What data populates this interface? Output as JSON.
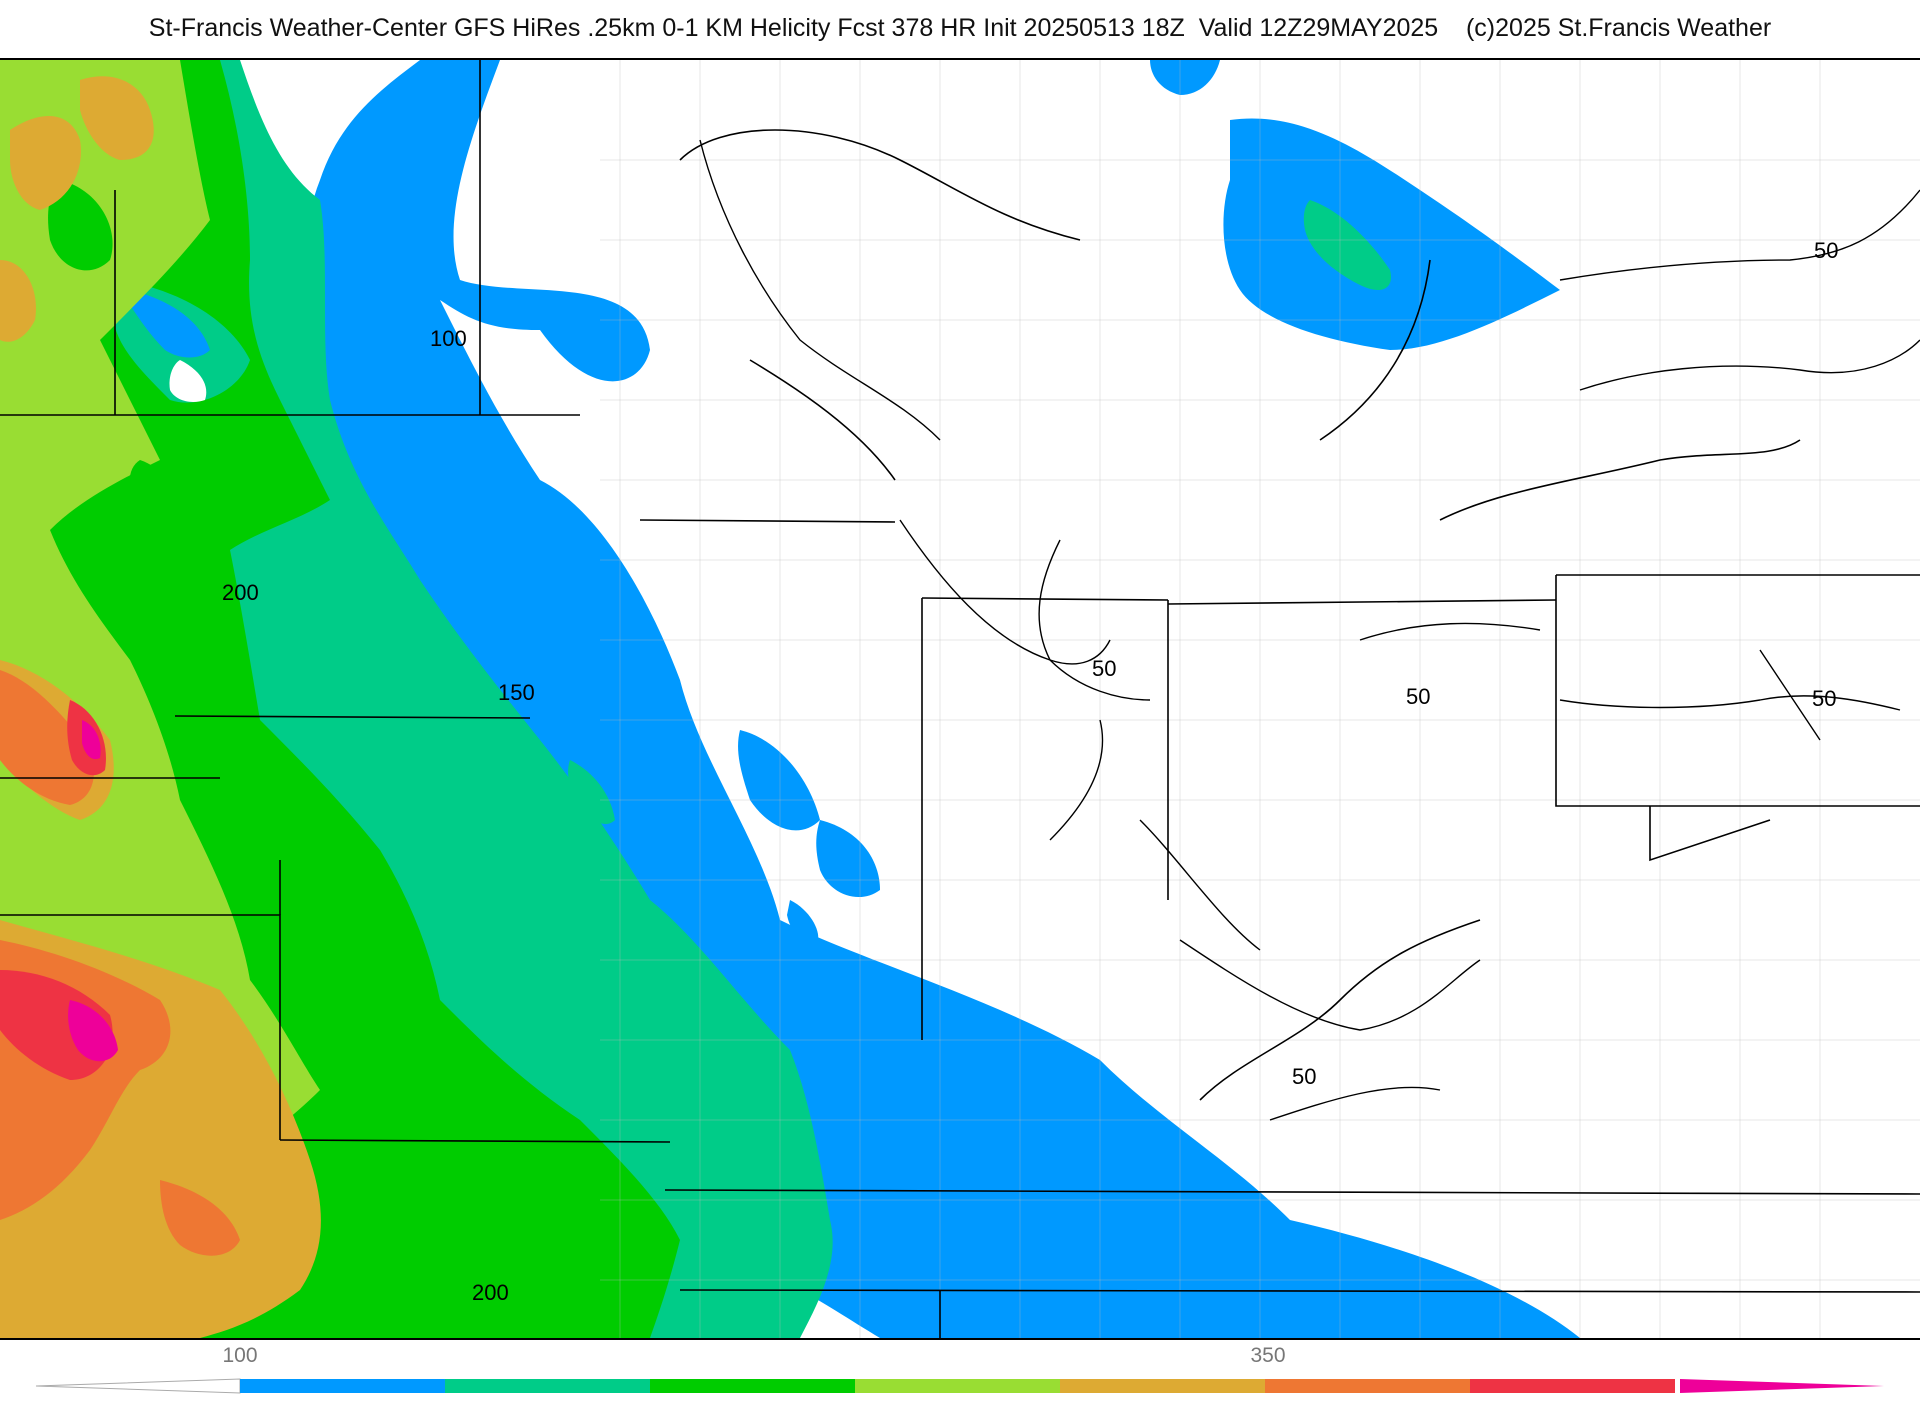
{
  "header": {
    "title": "St-Francis Weather-Center GFS HiRes .25km 0-1 KM Helicity Fcst 378 HR Init 20250513 18Z  Valid 12Z29MAY2025    (c)2025 St.Francis Weather"
  },
  "map": {
    "contour_labels": [
      {
        "id": "l100",
        "text": "100"
      },
      {
        "id": "l200a",
        "text": "200"
      },
      {
        "id": "l150",
        "text": "150"
      },
      {
        "id": "l200b",
        "text": "200"
      },
      {
        "id": "l50a",
        "text": "50"
      },
      {
        "id": "l50b",
        "text": "50"
      },
      {
        "id": "l50c",
        "text": "50"
      },
      {
        "id": "l50d",
        "text": "50"
      },
      {
        "id": "l50e",
        "text": "50"
      }
    ]
  },
  "colorbar": {
    "tick_labels": [
      "100",
      "350"
    ],
    "colors": [
      "#0099ff",
      "#00cc88",
      "#00cc00",
      "#99dd33",
      "#ddaa33",
      "#ee7733",
      "#ee3344",
      "#ee0099"
    ]
  }
}
